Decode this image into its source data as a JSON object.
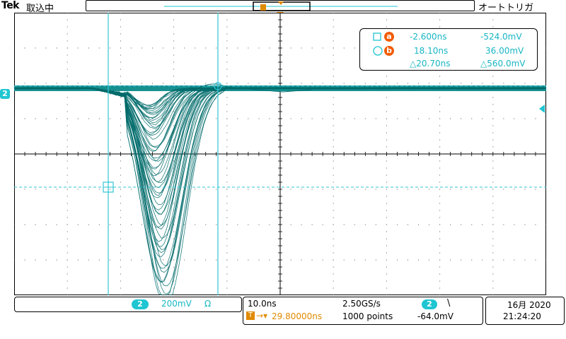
{
  "topbar": {
    "brand": "Tek",
    "acquisition_state": "取込中",
    "trigger_mode": "オートトリガ"
  },
  "channel": {
    "number": "2",
    "scale": "200mV",
    "coupling_symbol": "Ω",
    "trace_color": "#006b6b",
    "accent_color": "#1fc6d2"
  },
  "cursors": {
    "a_label": "a",
    "b_label": "b",
    "a_time": "-2.600ns",
    "a_volt": "-524.0mV",
    "b_time": "18.10ns",
    "b_volt": "36.00mV",
    "delta_time": "△20.70ns",
    "delta_volt": "△560.0mV",
    "cursor_color": "#f25c05"
  },
  "horizontal": {
    "time_per_div": "10.0ns",
    "sample_rate": "2.50GS/s",
    "record_length": "1000 points",
    "trigger_position": "29.80000ns"
  },
  "trigger": {
    "channel": "2",
    "slope_symbol": "\\",
    "level": "-64.0mV"
  },
  "clock": {
    "date": "16月 2020",
    "time": "21:24:20"
  }
}
